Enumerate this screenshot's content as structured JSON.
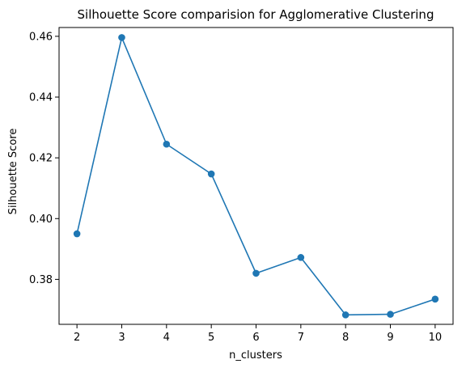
{
  "chart_data": {
    "type": "line",
    "title": "Silhouette Score comparision for Agglomerative Clustering",
    "xlabel": "n_clusters",
    "ylabel": "Silhouette Score",
    "x": [
      2,
      3,
      4,
      5,
      6,
      7,
      8,
      9,
      10
    ],
    "series": [
      {
        "values": [
          0.395,
          0.4596,
          0.4245,
          0.4147,
          0.382,
          0.3872,
          0.3683,
          0.3685,
          0.3735
        ]
      }
    ],
    "xlim": [
      1.6,
      10.4
    ],
    "ylim": [
      0.3652,
      0.4629
    ],
    "xticks": [
      "2",
      "3",
      "4",
      "5",
      "6",
      "7",
      "8",
      "9",
      "10"
    ],
    "yticks": [
      "0.38",
      "0.40",
      "0.42",
      "0.44",
      "0.46"
    ],
    "ytick_values": [
      0.38,
      0.4,
      0.42,
      0.44,
      0.46
    ],
    "grid": false,
    "markers": true,
    "line_color": "#1f77b4",
    "marker_color": "#1f77b4"
  }
}
